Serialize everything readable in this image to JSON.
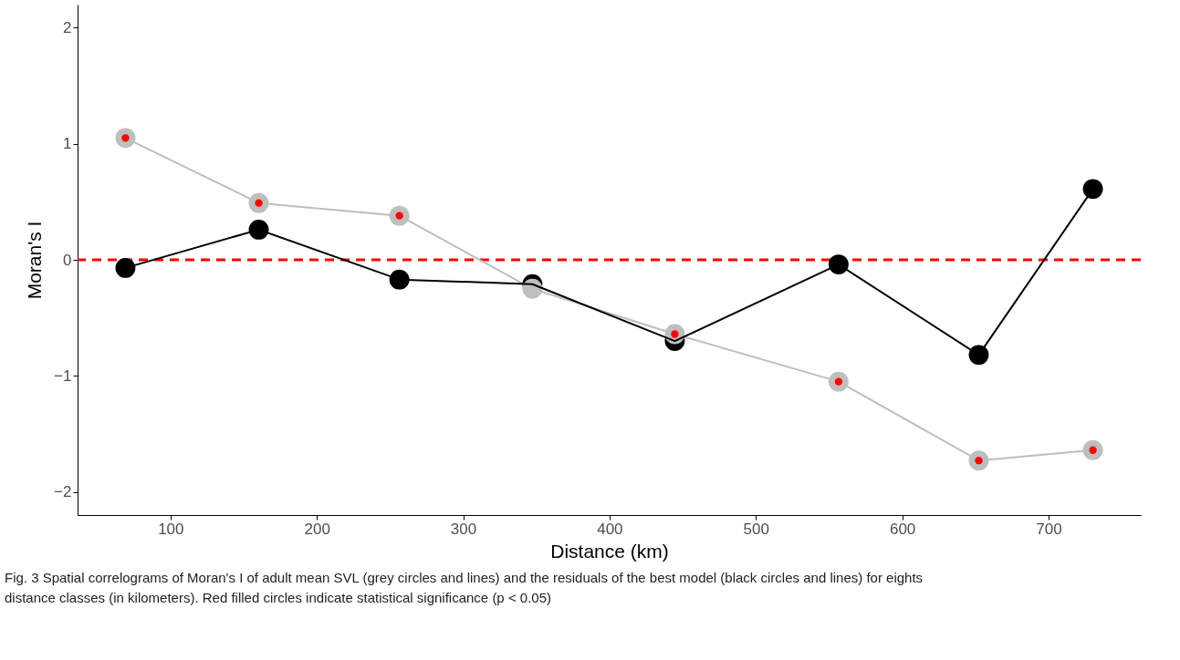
{
  "chart_data": {
    "type": "line",
    "xlabel": "Distance (km)",
    "ylabel": "Moran's I",
    "xlim": [
      36.5,
      763
    ],
    "xticks": [
      100,
      200,
      300,
      400,
      500,
      600,
      700
    ],
    "ylim": [
      -2.2,
      2.2
    ],
    "yticks": [
      -2,
      -1,
      0,
      1,
      2
    ],
    "grid": false,
    "marker": "circle",
    "line_style": "solid",
    "series": [
      {
        "type": "line",
        "color": "#000000",
        "x": [
          69.2,
          160.3,
          256.4,
          347.3,
          444.6,
          556.5,
          652.3,
          730.3
        ],
        "values": [
          -0.07,
          0.26,
          -0.17,
          -0.21,
          -0.7,
          -0.04,
          -0.82,
          0.61
        ]
      },
      {
        "type": "line",
        "color": "#bebebe",
        "x": [
          69.2,
          160.3,
          256.4,
          347.3,
          444.6,
          556.5,
          652.3,
          730.3
        ],
        "values": [
          1.05,
          0.49,
          0.38,
          -0.25,
          -0.64,
          -1.05,
          -1.73,
          -1.64
        ]
      },
      {
        "type": "scatter",
        "color": "#ff0000",
        "x": [
          69.2,
          160.3,
          256.4,
          444.6,
          556.5,
          652.3,
          730.3
        ],
        "values": [
          1.05,
          0.49,
          0.38,
          -0.64,
          -1.05,
          -1.73,
          -1.64
        ]
      }
    ],
    "ref_lines": [
      {
        "axis": "y",
        "value": 0,
        "color": "#ff0000",
        "line_style": "dashed"
      }
    ],
    "annotations": [
      "Fig. 3  Spatial correlograms of Moran's I of adult mean SVL (grey circles and lines) and the residuals of the best model (black circles and lines) for eights distance classes (in kilometers). Red filled circles indicate statistical significance (p < 0.05)"
    ]
  }
}
